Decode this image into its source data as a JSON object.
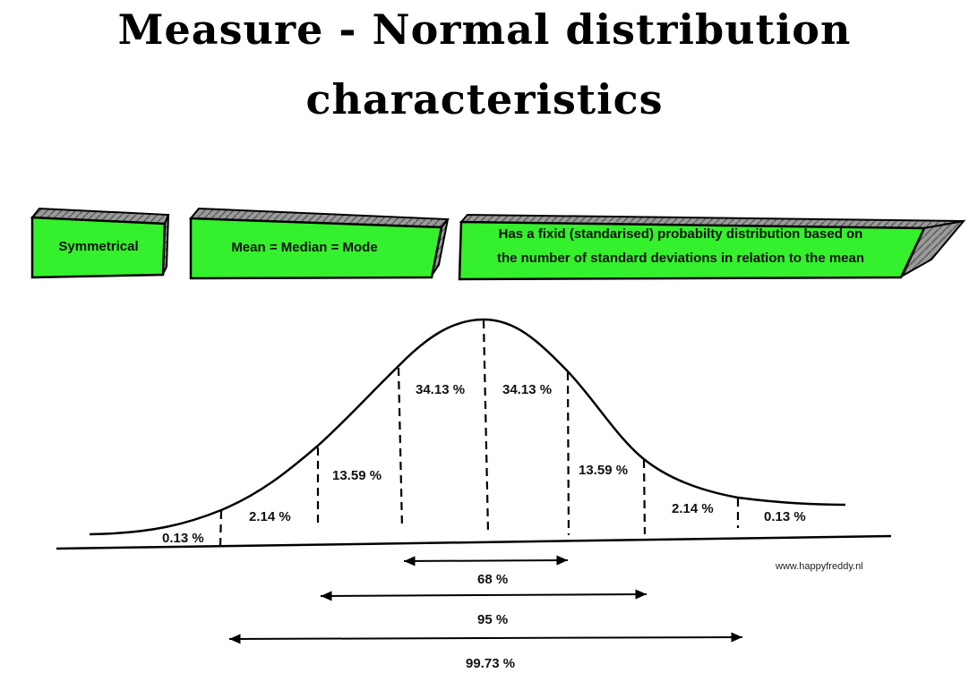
{
  "title": {
    "line1": "Measure - Normal distribution",
    "line2": "characteristics"
  },
  "boxes": [
    {
      "text": "Symmetrical"
    },
    {
      "text": "Mean = Median =  Mode"
    },
    {
      "line1": "Has a fixid (standarised) probabilty distribution based on",
      "line2": "the number of standard deviations in relation to the mean"
    }
  ],
  "segments": [
    "0.13 %",
    "2.14 %",
    "13.59 %",
    "34.13 %",
    "34.13 %",
    "13.59 %",
    "2.14 %",
    "0.13 %"
  ],
  "ranges": [
    "68 %",
    "95 %",
    "99.73 %"
  ],
  "credit": "www.happyfreddy.nl",
  "colors": {
    "box_fill": "#35f02c",
    "box_side": "#8a8a8a",
    "line": "#000000"
  }
}
